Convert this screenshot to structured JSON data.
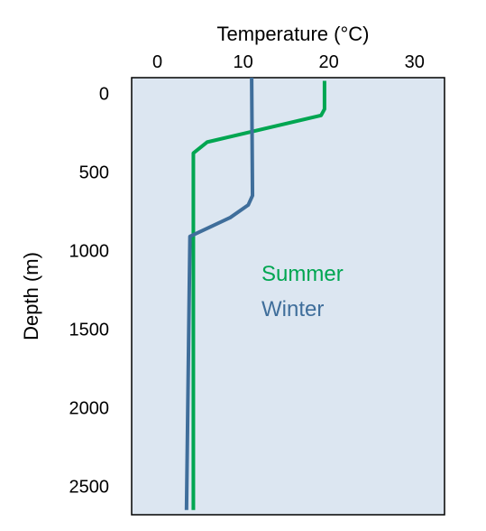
{
  "chart_data": {
    "type": "line",
    "title": "",
    "xlabel": "Temperature (°C)",
    "ylabel": "Depth (m)",
    "x_axis_position": "top",
    "y_axis_inverted": true,
    "xlim": [
      -3,
      33.5
    ],
    "ylim": [
      -100,
      2680
    ],
    "x_ticks": [
      0,
      10,
      20,
      30
    ],
    "x_tick_labels": [
      "0",
      "10",
      "20",
      "30"
    ],
    "y_ticks": [
      0,
      500,
      1000,
      1500,
      2000,
      2500
    ],
    "y_tick_labels": [
      "0",
      "500",
      "1000",
      "1500",
      "2000",
      "2500"
    ],
    "grid": false,
    "background_color": "#dce6f1",
    "legend_position": "center-right, inside plot",
    "series": [
      {
        "name": "Summer",
        "color": "#00a651",
        "points": [
          [
            19.5,
            -80
          ],
          [
            19.5,
            100
          ],
          [
            19.1,
            140
          ],
          [
            5.8,
            310
          ],
          [
            4.2,
            380
          ],
          [
            4.2,
            2650
          ]
        ]
      },
      {
        "name": "Winter",
        "color": "#3f6e9b",
        "points": [
          [
            11.0,
            -100
          ],
          [
            11.1,
            650
          ],
          [
            10.6,
            710
          ],
          [
            8.5,
            790
          ],
          [
            3.8,
            910
          ],
          [
            3.4,
            2650
          ]
        ]
      }
    ]
  }
}
